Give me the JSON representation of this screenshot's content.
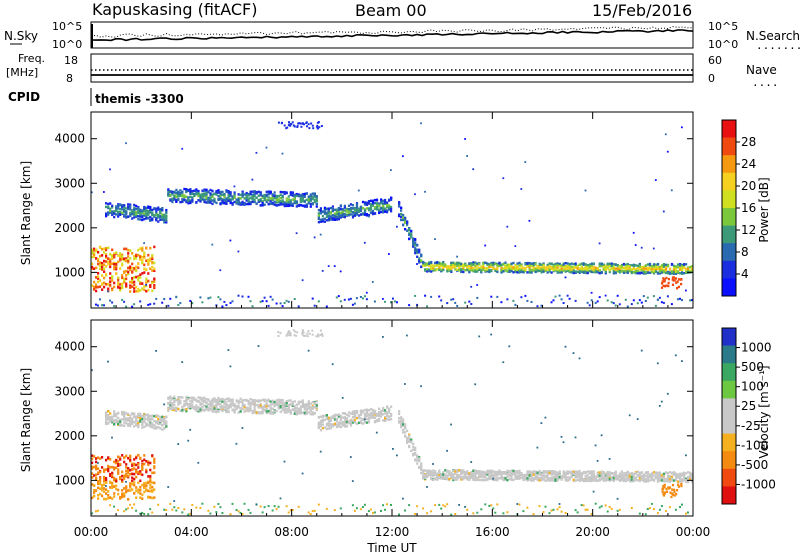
{
  "header": {
    "station": "Kapuskasing (fitACF)",
    "beam": "Beam 00",
    "date": "15/Feb/2016"
  },
  "top_panel": {
    "left_label": "N.Sky",
    "left_ticks": [
      "10^5",
      "10^0"
    ],
    "right_ticks": [
      "10^5",
      "10^0"
    ],
    "right_label": "N.Search",
    "right_label_dots": "......."
  },
  "freq_panel": {
    "left_label_1": "Freq.",
    "left_label_2": "[MHz]",
    "left_ticks": [
      "18",
      "8"
    ],
    "right_ticks": [
      "60",
      "0"
    ],
    "right_label": "Nave",
    "right_label_dots": "...."
  },
  "cpid": {
    "label": "CPID",
    "value": "themis -3300"
  },
  "axes": {
    "y_label_1": "Slant Range [km]",
    "y_label_2": "Slant Range [km]",
    "y_ticks": [
      "4000",
      "3000",
      "2000",
      "1000"
    ],
    "y_tick_values": [
      4000,
      3000,
      2000,
      1000
    ],
    "y_range": [
      200,
      4600
    ],
    "x_ticks": [
      "00:00",
      "04:00",
      "08:00",
      "12:00",
      "16:00",
      "20:00",
      "00:00"
    ],
    "x_tick_hours": [
      0,
      4,
      8,
      12,
      16,
      20,
      24
    ],
    "x_label": "Time UT"
  },
  "colorbar_power": {
    "label": "Power [dB]",
    "ticks": [
      "28",
      "24",
      "20",
      "16",
      "12",
      "8",
      "4"
    ],
    "colors": [
      "#e81010",
      "#f04a10",
      "#f59a10",
      "#f5d020",
      "#cfe020",
      "#7cc83c",
      "#3c9a78",
      "#2a6ab0",
      "#1a2ee0",
      "#0a10ff"
    ]
  },
  "colorbar_velocity": {
    "label": "Velocity [m s⁻¹]",
    "ticks": [
      "1000",
      "500",
      "100",
      "25",
      "-25",
      "-100",
      "-500",
      "-1000"
    ],
    "colors": [
      "#2030c8",
      "#2a7a8a",
      "#3aa860",
      "#6cc840",
      "#c8c8c8",
      "#c8c8c8",
      "#f5b020",
      "#f58a10",
      "#f04a10",
      "#e01010"
    ]
  },
  "chart_data": {
    "type": "heatmap",
    "title": "Kapuskasing (fitACF) Beam 00 15/Feb/2016",
    "xlabel": "Time UT",
    "ylabel": "Slant Range [km]",
    "xlim_hours": [
      0,
      24
    ],
    "ylim_km": [
      200,
      4600
    ],
    "features": [
      {
        "desc": "upper band",
        "t_start": 0.5,
        "t_end": 3.0,
        "range_start": 2450,
        "range_end": 2300
      },
      {
        "desc": "upper band",
        "t_start": 3.0,
        "t_end": 9.0,
        "range_start": 2750,
        "range_end": 2650
      },
      {
        "desc": "upper band",
        "t_start": 9.0,
        "t_end": 12.0,
        "range_start": 2300,
        "range_end": 2550
      },
      {
        "desc": "descending band",
        "t_start": 12.2,
        "t_end": 13.2,
        "range_start": 2500,
        "range_end": 1200
      },
      {
        "desc": "lower band",
        "t_start": 13.2,
        "t_end": 24.0,
        "range_start": 1150,
        "range_end": 1100
      },
      {
        "desc": "early near echoes",
        "t_start": 0.0,
        "t_end": 2.5,
        "range_start": 600,
        "range_end": 1600
      }
    ]
  }
}
